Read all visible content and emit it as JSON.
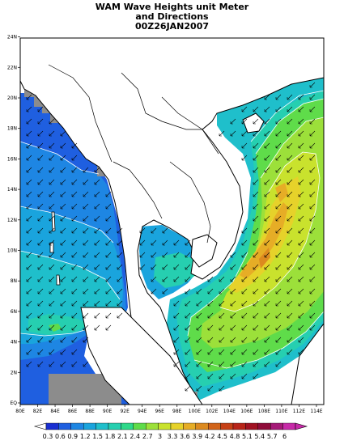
{
  "title": {
    "line1": "WAM Wave Heights unit Meter",
    "line2": "and Directions",
    "line3": "00Z26JAN2007"
  },
  "map": {
    "lon_ticks": [
      "80E",
      "82E",
      "84E",
      "86E",
      "88E",
      "90E",
      "92E",
      "94E",
      "96E",
      "98E",
      "100E",
      "102E",
      "104E",
      "106E",
      "108E",
      "110E",
      "112E",
      "114E"
    ],
    "lat_ticks": [
      "EQ",
      "2N",
      "4N",
      "6N",
      "8N",
      "10N",
      "12N",
      "14N",
      "16N",
      "18N",
      "20N",
      "22N",
      "24N"
    ],
    "land_color": "#ffffff",
    "mask_color": "#8c8c8c"
  },
  "colorbar": {
    "labels": [
      "0.3",
      "0.6",
      "0.9",
      "1.2",
      "1.5",
      "1.8",
      "2.1",
      "2.4",
      "2.7",
      "3",
      "3.3",
      "3.6",
      "3.9",
      "4.2",
      "4.5",
      "4.8",
      "5.1",
      "5.4",
      "5.7",
      "6"
    ],
    "colors": [
      "#1a2fd2",
      "#1f5fe0",
      "#1e86e3",
      "#1aa4dd",
      "#1fbfcb",
      "#26cfb0",
      "#2ed98a",
      "#5fdc4a",
      "#9ce03a",
      "#c9e22d",
      "#e6d22a",
      "#e6ad26",
      "#dc8a1f",
      "#d1641a",
      "#c64015",
      "#b82418",
      "#a11222",
      "#8f0c3a",
      "#a51a78",
      "#c72aa8"
    ]
  }
}
